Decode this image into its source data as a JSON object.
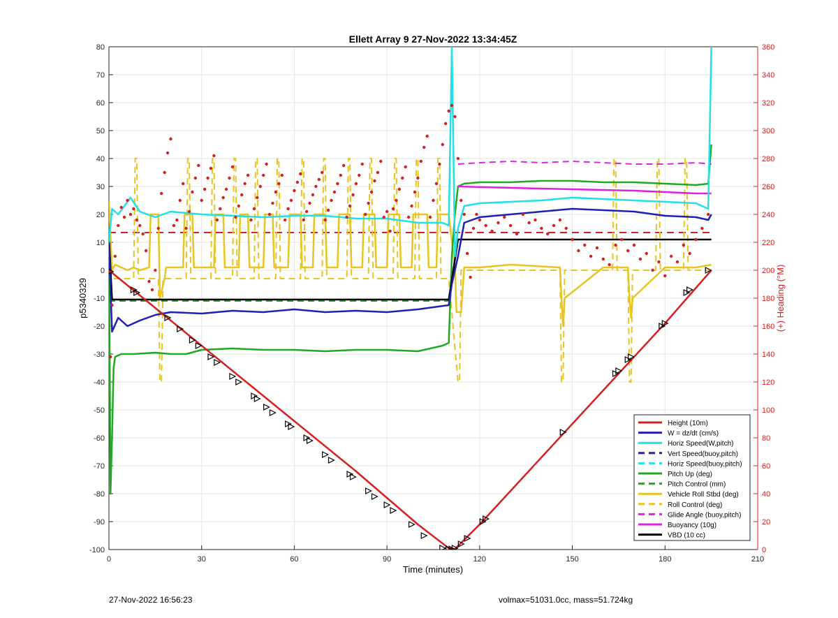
{
  "chart_data": {
    "type": "line",
    "title": "Ellett Array 9 27-Nov-2022 13:34:45Z",
    "xlabel": "Time (minutes)",
    "ylabel": "p5340329",
    "ylabel_right": "(+) Heading (°M)",
    "xlim": [
      0,
      210
    ],
    "ylim": [
      -100,
      80
    ],
    "ylim_right": [
      0,
      360
    ],
    "xticks": [
      "0",
      "30",
      "60",
      "90",
      "120",
      "150",
      "180",
      "210"
    ],
    "yticks": [
      "80",
      "70",
      "60",
      "50",
      "40",
      "30",
      "20",
      "10",
      "0",
      "-10",
      "-20",
      "-30",
      "-40",
      "-50",
      "-60",
      "-70",
      "-80",
      "-90",
      "-100"
    ],
    "yticks_right": [
      "360",
      "340",
      "320",
      "300",
      "280",
      "260",
      "240",
      "220",
      "200",
      "180",
      "160",
      "140",
      "120",
      "100",
      "80",
      "60",
      "40",
      "20",
      "0"
    ],
    "grid": true,
    "legend_position": "bottom-right",
    "series": [
      {
        "name": "Height (10m)",
        "color": "#d62020",
        "style": "solid",
        "x": [
          0,
          20,
          40,
          60,
          80,
          100,
          110,
          112,
          120,
          140,
          160,
          180,
          195
        ],
        "y": [
          0,
          -18,
          -36,
          -54,
          -72,
          -91,
          -99.5,
          -99.8,
          -91,
          -67,
          -43,
          -19,
          0
        ]
      },
      {
        "name": "W = dz/dt (cm/s)",
        "color": "#1f1fb4",
        "style": "solid",
        "x": [
          0,
          1,
          3,
          6,
          10,
          15,
          20,
          30,
          40,
          50,
          60,
          70,
          80,
          90,
          100,
          110,
          111,
          113,
          115,
          120,
          130,
          140,
          150,
          160,
          170,
          180,
          190,
          194,
          195
        ],
        "y": [
          10,
          -22,
          -17,
          -20,
          -18,
          -16,
          -15,
          -15.5,
          -14.5,
          -15,
          -14,
          -15,
          -14.5,
          -15,
          -14,
          -12.5,
          -5,
          5,
          17,
          19,
          20,
          21,
          22,
          21.5,
          21,
          19.5,
          19,
          18,
          20
        ]
      },
      {
        "name": "Horiz Speed(W,pitch)",
        "color": "#22e0e8",
        "style": "solid",
        "x": [
          0,
          1,
          3,
          7,
          10,
          15,
          20,
          30,
          40,
          50,
          60,
          70,
          80,
          90,
          100,
          108,
          110,
          111,
          112,
          113,
          115,
          120,
          130,
          140,
          150,
          160,
          170,
          180,
          190,
          194,
          195
        ],
        "y": [
          10,
          22,
          20,
          26,
          21,
          19,
          21,
          20,
          19.5,
          19,
          19.5,
          19.5,
          18.5,
          18.5,
          17,
          17,
          16,
          80,
          5,
          15,
          23,
          24,
          24.5,
          25,
          26,
          25.5,
          25,
          24.5,
          24,
          22,
          80
        ]
      },
      {
        "name": "Vert Speed(buoy,pitch)",
        "color": "#1f1fb4",
        "style": "dashed",
        "x": [],
        "y": []
      },
      {
        "name": "Horiz Speed(buoy,pitch)",
        "color": "#22e0e8",
        "style": "dashed",
        "x": [],
        "y": []
      },
      {
        "name": "Pitch Up (deg)",
        "color": "#20a820",
        "style": "solid",
        "x": [
          0,
          0.5,
          1,
          1.5,
          2,
          4,
          8,
          15,
          20,
          25,
          30,
          40,
          50,
          60,
          70,
          80,
          90,
          100,
          108,
          110,
          111,
          112,
          113,
          115,
          120,
          130,
          140,
          150,
          160,
          170,
          180,
          190,
          194,
          195
        ],
        "y": [
          15,
          -80,
          -60,
          -35,
          -31,
          -30,
          -30,
          -29.5,
          -30,
          -30,
          -28.5,
          -28,
          -28.5,
          -28.5,
          -29,
          -28.5,
          -28.5,
          -29,
          -27,
          -26,
          5,
          20,
          30,
          31,
          31.5,
          31.5,
          32,
          32,
          31.5,
          31.5,
          31,
          30.5,
          31,
          45
        ]
      },
      {
        "name": "Pitch Control (mm)",
        "color": "#20a820",
        "style": "dashed",
        "x": [
          0,
          1,
          110,
          113,
          195
        ],
        "y": [
          -11,
          -11,
          -11,
          11,
          11
        ]
      },
      {
        "name": "Vehicle Roll Stbd (deg)",
        "color": "#e8c420",
        "style": "solid",
        "x": [
          0,
          1,
          2,
          4,
          6,
          8,
          10,
          13,
          13.5,
          16,
          16.5,
          18,
          18.5,
          20,
          24,
          24.5,
          27,
          27.5,
          34,
          34.5,
          37,
          37.5,
          42,
          42.5,
          45,
          45.5,
          50,
          50.5,
          53,
          53.5,
          58,
          58.5,
          62,
          62.5,
          66,
          66.5,
          70,
          70.5,
          74,
          74.5,
          78,
          78.5,
          82,
          82.5,
          86,
          86.5,
          90,
          90.5,
          94,
          94.5,
          98,
          98.5,
          103,
          103.5,
          106,
          106.5,
          110,
          112,
          112.5,
          114,
          115,
          120,
          130,
          146,
          146.5,
          147,
          147.5,
          160,
          168,
          168.5,
          169,
          169.5,
          180,
          190,
          195
        ],
        "y": [
          25,
          0,
          2,
          1,
          0,
          1,
          0,
          1,
          20,
          20,
          -10,
          -3,
          1,
          1,
          1,
          20,
          20,
          1,
          1,
          20,
          20,
          1,
          1,
          20,
          20,
          1,
          1,
          20,
          20,
          1,
          1,
          20,
          20,
          1,
          1,
          20,
          20,
          1,
          1,
          20,
          20,
          1,
          1,
          20,
          20,
          1,
          1,
          20,
          20,
          1,
          1,
          20,
          20,
          1,
          1,
          20,
          20,
          1,
          -15,
          -15,
          1,
          1,
          2,
          1,
          -10,
          -20,
          -10,
          1,
          1,
          -10,
          -17,
          -10,
          1,
          1,
          2
        ]
      },
      {
        "name": "Roll Control (deg)",
        "color": "#e8c420",
        "style": "dashed",
        "x": [
          0,
          1,
          8,
          8.5,
          9,
          9.5,
          16,
          16.5,
          17,
          17.5,
          25,
          25.5,
          26,
          26.5,
          33,
          33.5,
          34,
          34.5,
          40,
          40.5,
          41,
          41.5,
          47,
          47.5,
          48,
          48.5,
          54,
          54.5,
          55,
          55.5,
          62,
          62.5,
          63,
          63.5,
          69,
          69.5,
          70,
          70.5,
          77,
          77.5,
          78,
          78.5,
          84,
          84.5,
          85,
          85.5,
          92,
          92.5,
          93,
          93.5,
          99,
          99.5,
          100,
          100.5,
          106,
          106.5,
          107,
          107.5,
          110,
          113,
          113.5,
          114,
          114.5,
          146,
          146.5,
          147,
          147.5,
          163,
          163.5,
          164,
          164.5,
          168,
          168.5,
          169,
          169.5,
          177,
          177.5,
          178,
          178.5,
          186,
          186.5,
          187,
          187.5,
          195
        ],
        "y": [
          0,
          -3,
          -3,
          40,
          40,
          -3,
          -3,
          -40,
          -40,
          -3,
          -3,
          40,
          40,
          -3,
          -3,
          40,
          40,
          -3,
          -3,
          40,
          40,
          -3,
          -3,
          40,
          40,
          -3,
          -3,
          40,
          40,
          -3,
          -3,
          40,
          40,
          -3,
          -3,
          40,
          40,
          -3,
          -3,
          40,
          40,
          -3,
          -3,
          40,
          40,
          -3,
          -3,
          40,
          40,
          -3,
          -3,
          40,
          40,
          -3,
          -3,
          40,
          40,
          -3,
          -3,
          -40,
          -40,
          0,
          0,
          0,
          -40,
          -40,
          0,
          0,
          40,
          40,
          0,
          0,
          -40,
          -40,
          0,
          0,
          40,
          40,
          0,
          0,
          40,
          40,
          0,
          0
        ]
      },
      {
        "name": "Glide Angle (buoy,pitch)",
        "color": "#e020e0",
        "style": "dashed",
        "x": [
          113,
          120,
          130,
          140,
          150,
          160,
          170,
          180,
          190,
          195
        ],
        "y": [
          38,
          38.5,
          39,
          38.5,
          39,
          38.5,
          38,
          38,
          38.5,
          38
        ]
      },
      {
        "name": "Buoyancy (10g)",
        "color": "#e020e0",
        "style": "solid",
        "x": [
          113,
          130,
          150,
          170,
          190,
          195
        ],
        "y": [
          30,
          29.5,
          29,
          28.5,
          27.5,
          27.5
        ]
      },
      {
        "name": "VBD (10 cc)",
        "color": "#000000",
        "style": "solid",
        "x": [
          0,
          1,
          20,
          60,
          100,
          110,
          113,
          150,
          195
        ],
        "y": [
          12,
          -10.5,
          -10.5,
          -10.5,
          -10.5,
          -10.5,
          11,
          11,
          11
        ]
      }
    ],
    "heading_reference": {
      "color": "#d62020",
      "style": "dashed",
      "axis": "right",
      "y": 227
    },
    "heading_points": {
      "color": "#d62020",
      "axis": "right",
      "x": [
        0.5,
        1,
        2,
        3,
        4,
        5,
        6,
        7,
        8,
        9,
        10,
        11,
        12,
        13,
        14,
        15,
        16,
        17,
        18,
        19,
        20,
        21,
        22,
        23,
        24,
        25,
        26,
        27,
        28,
        29,
        30,
        31,
        32,
        33,
        34,
        35,
        36,
        37,
        38,
        39,
        40,
        41,
        42,
        43,
        44,
        45,
        46,
        47,
        48,
        49,
        50,
        51,
        52,
        53,
        54,
        55,
        56,
        57,
        58,
        59,
        60,
        61,
        62,
        63,
        64,
        65,
        66,
        67,
        68,
        69,
        70,
        71,
        72,
        73,
        74,
        75,
        76,
        77,
        78,
        79,
        80,
        81,
        82,
        83,
        84,
        85,
        86,
        87,
        88,
        89,
        90,
        91,
        92,
        93,
        94,
        95,
        96,
        97,
        98,
        99,
        100,
        101,
        102,
        103,
        104,
        105,
        106,
        107,
        108,
        109,
        110,
        111,
        112,
        113,
        114,
        115,
        116,
        117,
        118,
        119,
        120,
        122,
        124,
        126,
        128,
        130,
        132,
        134,
        136,
        138,
        140,
        142,
        144,
        146,
        148,
        150,
        152,
        154,
        156,
        158,
        160,
        162,
        164,
        166,
        168,
        170,
        172,
        174,
        176,
        178,
        180,
        182,
        184,
        186,
        188,
        190,
        192,
        194
      ],
      "y": [
        138,
        175,
        210,
        232,
        245,
        238,
        250,
        240,
        244,
        236,
        232,
        226,
        214,
        192,
        186,
        200,
        230,
        255,
        270,
        284,
        294,
        232,
        236,
        250,
        262,
        230,
        242,
        256,
        266,
        275,
        250,
        258,
        266,
        273,
        282,
        236,
        244,
        252,
        258,
        266,
        274,
        238,
        246,
        254,
        262,
        268,
        236,
        244,
        252,
        260,
        268,
        276,
        240,
        248,
        256,
        262,
        268,
        236,
        244,
        250,
        257,
        263,
        269,
        236,
        242,
        248,
        254,
        260,
        265,
        270,
        236,
        243,
        250,
        256,
        262,
        268,
        275,
        238,
        246,
        254,
        262,
        268,
        276,
        240,
        248,
        256,
        264,
        270,
        278,
        238,
        242,
        228,
        244,
        250,
        258,
        266,
        274,
        238,
        246,
        256,
        266,
        278,
        288,
        296,
        238,
        250,
        262,
        276,
        290,
        305,
        314,
        318,
        310,
        280,
        250,
        240,
        212,
        195,
        230,
        240,
        236,
        232,
        228,
        234,
        238,
        232,
        226,
        240,
        234,
        236,
        230,
        226,
        232,
        236,
        230,
        222,
        214,
        218,
        210,
        216,
        208,
        204,
        218,
        222,
        214,
        218,
        208,
        212,
        200,
        206,
        196,
        210,
        206,
        218,
        212,
        222,
        230,
        240
      ]
    },
    "marker_points": {
      "x": [
        0.5,
        8,
        9,
        19,
        23,
        27,
        29,
        33,
        35,
        40,
        42,
        47,
        48,
        51,
        53,
        58,
        59,
        64,
        65,
        70,
        72,
        78,
        79,
        84,
        86,
        90,
        92,
        98,
        102,
        108,
        110,
        111,
        112,
        114,
        116,
        121,
        122,
        147,
        164,
        165,
        168,
        169,
        179,
        180,
        187,
        188,
        194
      ],
      "y": [
        -0.5,
        -7,
        -8,
        -17,
        -21,
        -25,
        -27,
        -31,
        -33,
        -38,
        -40,
        -45,
        -46,
        -49,
        -51,
        -55,
        -56,
        -60,
        -61,
        -66,
        -68,
        -73,
        -74,
        -79,
        -81,
        -84,
        -86,
        -91,
        -95,
        -99.5,
        -99.8,
        -99.8,
        -99.5,
        -98,
        -96,
        -90,
        -89,
        -58,
        -37,
        -36,
        -32,
        -31,
        -20,
        -19,
        -8,
        -7,
        0
      ]
    }
  },
  "footer": {
    "timestamp": "27-Nov-2022 16:56:23",
    "info": "volmax=51031.0cc, mass=51.724kg"
  }
}
